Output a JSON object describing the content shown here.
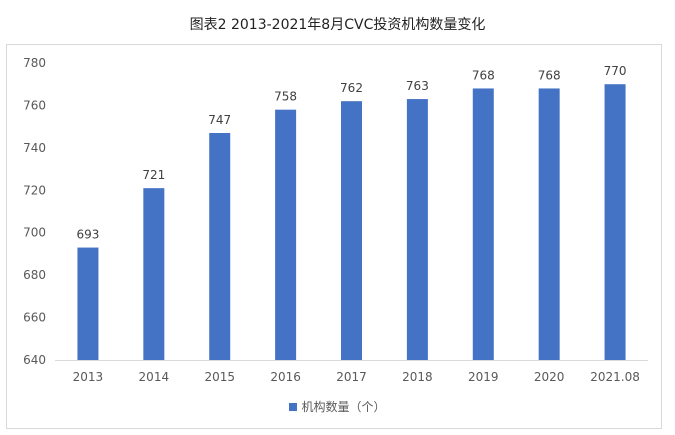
{
  "title": "图表2 2013-2021年8月CVC投资机构数量变化",
  "chart_data": {
    "type": "bar",
    "title": "图表2 2013-2021年8月CVC投资机构数量变化",
    "categories": [
      "2013",
      "2014",
      "2015",
      "2016",
      "2017",
      "2018",
      "2019",
      "2020",
      "2021.08"
    ],
    "series": [
      {
        "name": "机构数量（个）",
        "values": [
          693,
          721,
          747,
          758,
          762,
          763,
          768,
          768,
          770
        ]
      }
    ],
    "data_labels": [
      "693",
      "721",
      "747",
      "758",
      "762",
      "763",
      "768",
      "768",
      "770"
    ],
    "y_ticks": [
      "640",
      "660",
      "680",
      "700",
      "720",
      "740",
      "760",
      "780"
    ],
    "ylim": [
      640,
      780
    ],
    "grid": false,
    "legend_position": "bottom",
    "bar_color": "#4472c4"
  }
}
